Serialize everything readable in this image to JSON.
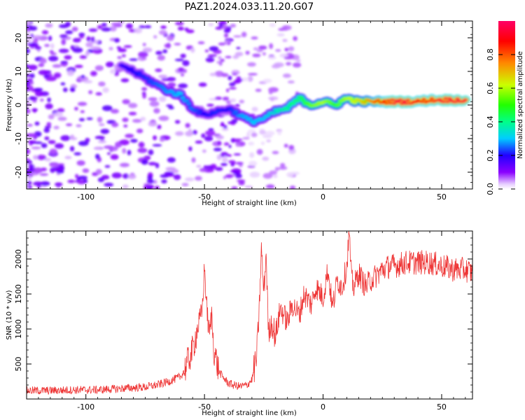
{
  "title": "PAZ1.2024.033.11.20.G07",
  "chart_data": [
    {
      "type": "heatmap",
      "xlabel": "Height of straight line (km)",
      "ylabel": "Frequency (Hz)",
      "xlim": [
        -125,
        63
      ],
      "ylim": [
        -25,
        25
      ],
      "xticks": [
        -100,
        -50,
        0,
        50
      ],
      "xtick_labels": [
        "-100",
        "-50",
        "0",
        "50"
      ],
      "yticks": [
        -20,
        -10,
        0,
        10,
        20
      ],
      "ytick_labels": [
        "-20",
        "-10",
        "0",
        "10",
        "20"
      ],
      "colorbar": {
        "label": "Normalized spectral amplitude",
        "range": [
          0,
          1
        ],
        "ticks": [
          0.0,
          0.2,
          0.4,
          0.6,
          0.8
        ],
        "tick_labels": [
          "0.0",
          "0.2",
          "0.4",
          "0.6",
          "0.8"
        ],
        "colormap": "gist_rainbow_r"
      },
      "ridge": [
        {
          "x": -85,
          "y": 12,
          "amp": 0.18
        },
        {
          "x": -80,
          "y": 10,
          "amp": 0.2
        },
        {
          "x": -75,
          "y": 8,
          "amp": 0.22
        },
        {
          "x": -70,
          "y": 6,
          "amp": 0.25
        },
        {
          "x": -65,
          "y": 4,
          "amp": 0.28
        },
        {
          "x": -60,
          "y": 3,
          "amp": 0.3
        },
        {
          "x": -55,
          "y": -1,
          "amp": 0.25
        },
        {
          "x": -50,
          "y": -3,
          "amp": 0.2
        },
        {
          "x": -45,
          "y": -2,
          "amp": 0.22
        },
        {
          "x": -40,
          "y": -1,
          "amp": 0.2
        },
        {
          "x": -35,
          "y": -3,
          "amp": 0.28
        },
        {
          "x": -30,
          "y": -5,
          "amp": 0.3
        },
        {
          "x": -25,
          "y": -4,
          "amp": 0.3
        },
        {
          "x": -20,
          "y": -2,
          "amp": 0.35
        },
        {
          "x": -15,
          "y": -1,
          "amp": 0.4
        },
        {
          "x": -10,
          "y": 2,
          "amp": 0.45
        },
        {
          "x": -5,
          "y": 0,
          "amp": 0.55
        },
        {
          "x": 0,
          "y": 1,
          "amp": 0.6
        },
        {
          "x": 5,
          "y": 0,
          "amp": 0.5
        },
        {
          "x": 10,
          "y": 2,
          "amp": 0.6
        },
        {
          "x": 15,
          "y": 1,
          "amp": 0.65
        },
        {
          "x": 20,
          "y": 1,
          "amp": 0.75
        },
        {
          "x": 25,
          "y": 1,
          "amp": 0.85
        },
        {
          "x": 30,
          "y": 1,
          "amp": 0.95
        },
        {
          "x": 35,
          "y": 1,
          "amp": 0.95
        },
        {
          "x": 40,
          "y": 1,
          "amp": 0.9
        },
        {
          "x": 45,
          "y": 1.5,
          "amp": 0.9
        },
        {
          "x": 50,
          "y": 1.5,
          "amp": 0.95
        },
        {
          "x": 55,
          "y": 1.5,
          "amp": 0.95
        },
        {
          "x": 60,
          "y": 1.5,
          "amp": 0.95
        }
      ]
    },
    {
      "type": "line",
      "xlabel": "Height of straight line (km)",
      "ylabel": "SNR (10 * v/v)",
      "xlim": [
        -125,
        63
      ],
      "ylim": [
        0,
        2400
      ],
      "xticks": [
        -100,
        -50,
        0,
        50
      ],
      "xtick_labels": [
        "-100",
        "-50",
        "0",
        "50"
      ],
      "yticks": [
        500,
        1000,
        1500,
        2000
      ],
      "ytick_labels": [
        "500",
        "1000",
        "1500",
        "2000"
      ],
      "color": "#ee3333",
      "series": [
        {
          "x": [
            -125,
            -115,
            -105,
            -95,
            -85,
            -75,
            -70,
            -65,
            -60,
            -58,
            -55,
            -53,
            -51,
            -50,
            -49,
            -48,
            -47,
            -46,
            -44,
            -42,
            -40,
            -38,
            -35,
            -32,
            -30,
            -28,
            -27,
            -26,
            -25,
            -24,
            -23,
            -22,
            -20,
            -18,
            -15,
            -13,
            -10,
            -8,
            -5,
            -3,
            0,
            2,
            4,
            6,
            8,
            10,
            11,
            12,
            13,
            15,
            18,
            20,
            22,
            25,
            28,
            30,
            35,
            40,
            45,
            50,
            55,
            60,
            63
          ],
          "y": [
            120,
            120,
            130,
            130,
            150,
            170,
            200,
            250,
            320,
            450,
            700,
            1000,
            1250,
            1880,
            1300,
            900,
            1200,
            700,
            400,
            300,
            230,
            200,
            180,
            200,
            280,
            600,
            1200,
            2150,
            1500,
            2100,
            900,
            1100,
            900,
            1300,
            1100,
            1350,
            1200,
            1500,
            1350,
            1600,
            1450,
            1850,
            1300,
            1700,
            1600,
            1900,
            2380,
            1700,
            1600,
            1800,
            1600,
            1700,
            1750,
            1850,
            1900,
            1900,
            1950,
            1950,
            1950,
            1900,
            1850,
            1850,
            1800
          ]
        }
      ]
    }
  ]
}
